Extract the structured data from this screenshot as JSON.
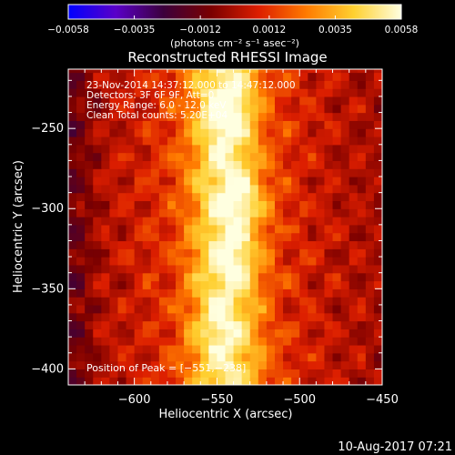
{
  "chart_data": {
    "type": "heatmap",
    "title": "Reconstructed RHESSI Image",
    "xlabel": "Heliocentric X (arcsec)",
    "ylabel": "Heliocentric Y (arcsec)",
    "xlim": [
      -640,
      -450
    ],
    "ylim": [
      -410,
      -213
    ],
    "x_ticks": [
      -600,
      -550,
      -500,
      -450
    ],
    "y_ticks": [
      -400,
      -350,
      -300,
      -250
    ],
    "x_tick_labels": [
      "−600",
      "−550",
      "−500",
      "−450"
    ],
    "y_tick_labels": [
      "−400",
      "−350",
      "−300",
      "−250"
    ],
    "colorbar": {
      "min": -0.0058,
      "max": 0.0058,
      "ticks": [
        -0.0058,
        -0.0035,
        -0.0012,
        0.0012,
        0.0035,
        0.0058
      ],
      "tick_labels": [
        "−0.0058",
        "−0.0035",
        "−0.0012",
        "0.0012",
        "0.0035",
        "0.0058"
      ],
      "unit_label": "(photons cm⁻² s⁻¹ asec⁻²)",
      "colors": [
        "#0000ff",
        "#5a00c8",
        "#3c003c",
        "#7a0000",
        "#dc1e00",
        "#ff7a00",
        "#ffd030",
        "#ffffe0"
      ]
    },
    "annotations": [
      "23-Nov-2014 14:37:12.000 to 14:47:12.000",
      "Detectors: 3F 6F 9F, Att=0",
      "Energy Range: 6.0 - 12.0 keV",
      "Clean     Total counts: 5.20E+04"
    ],
    "peak_label": "Position of Peak = [−551,−238]",
    "peak": [
      -551,
      -238
    ],
    "image_model": {
      "ridge_x": -545,
      "ridge_width": 22,
      "sources": [
        {
          "x": -545,
          "y": -240,
          "intensity": 0.0058
        },
        {
          "x": -535,
          "y": -292,
          "intensity": 0.0052
        },
        {
          "x": -540,
          "y": -330,
          "intensity": 0.0046
        },
        {
          "x": -550,
          "y": -375,
          "intensity": 0.0042
        }
      ]
    }
  },
  "footer": {
    "date": "10-Aug-2017 07:21"
  }
}
